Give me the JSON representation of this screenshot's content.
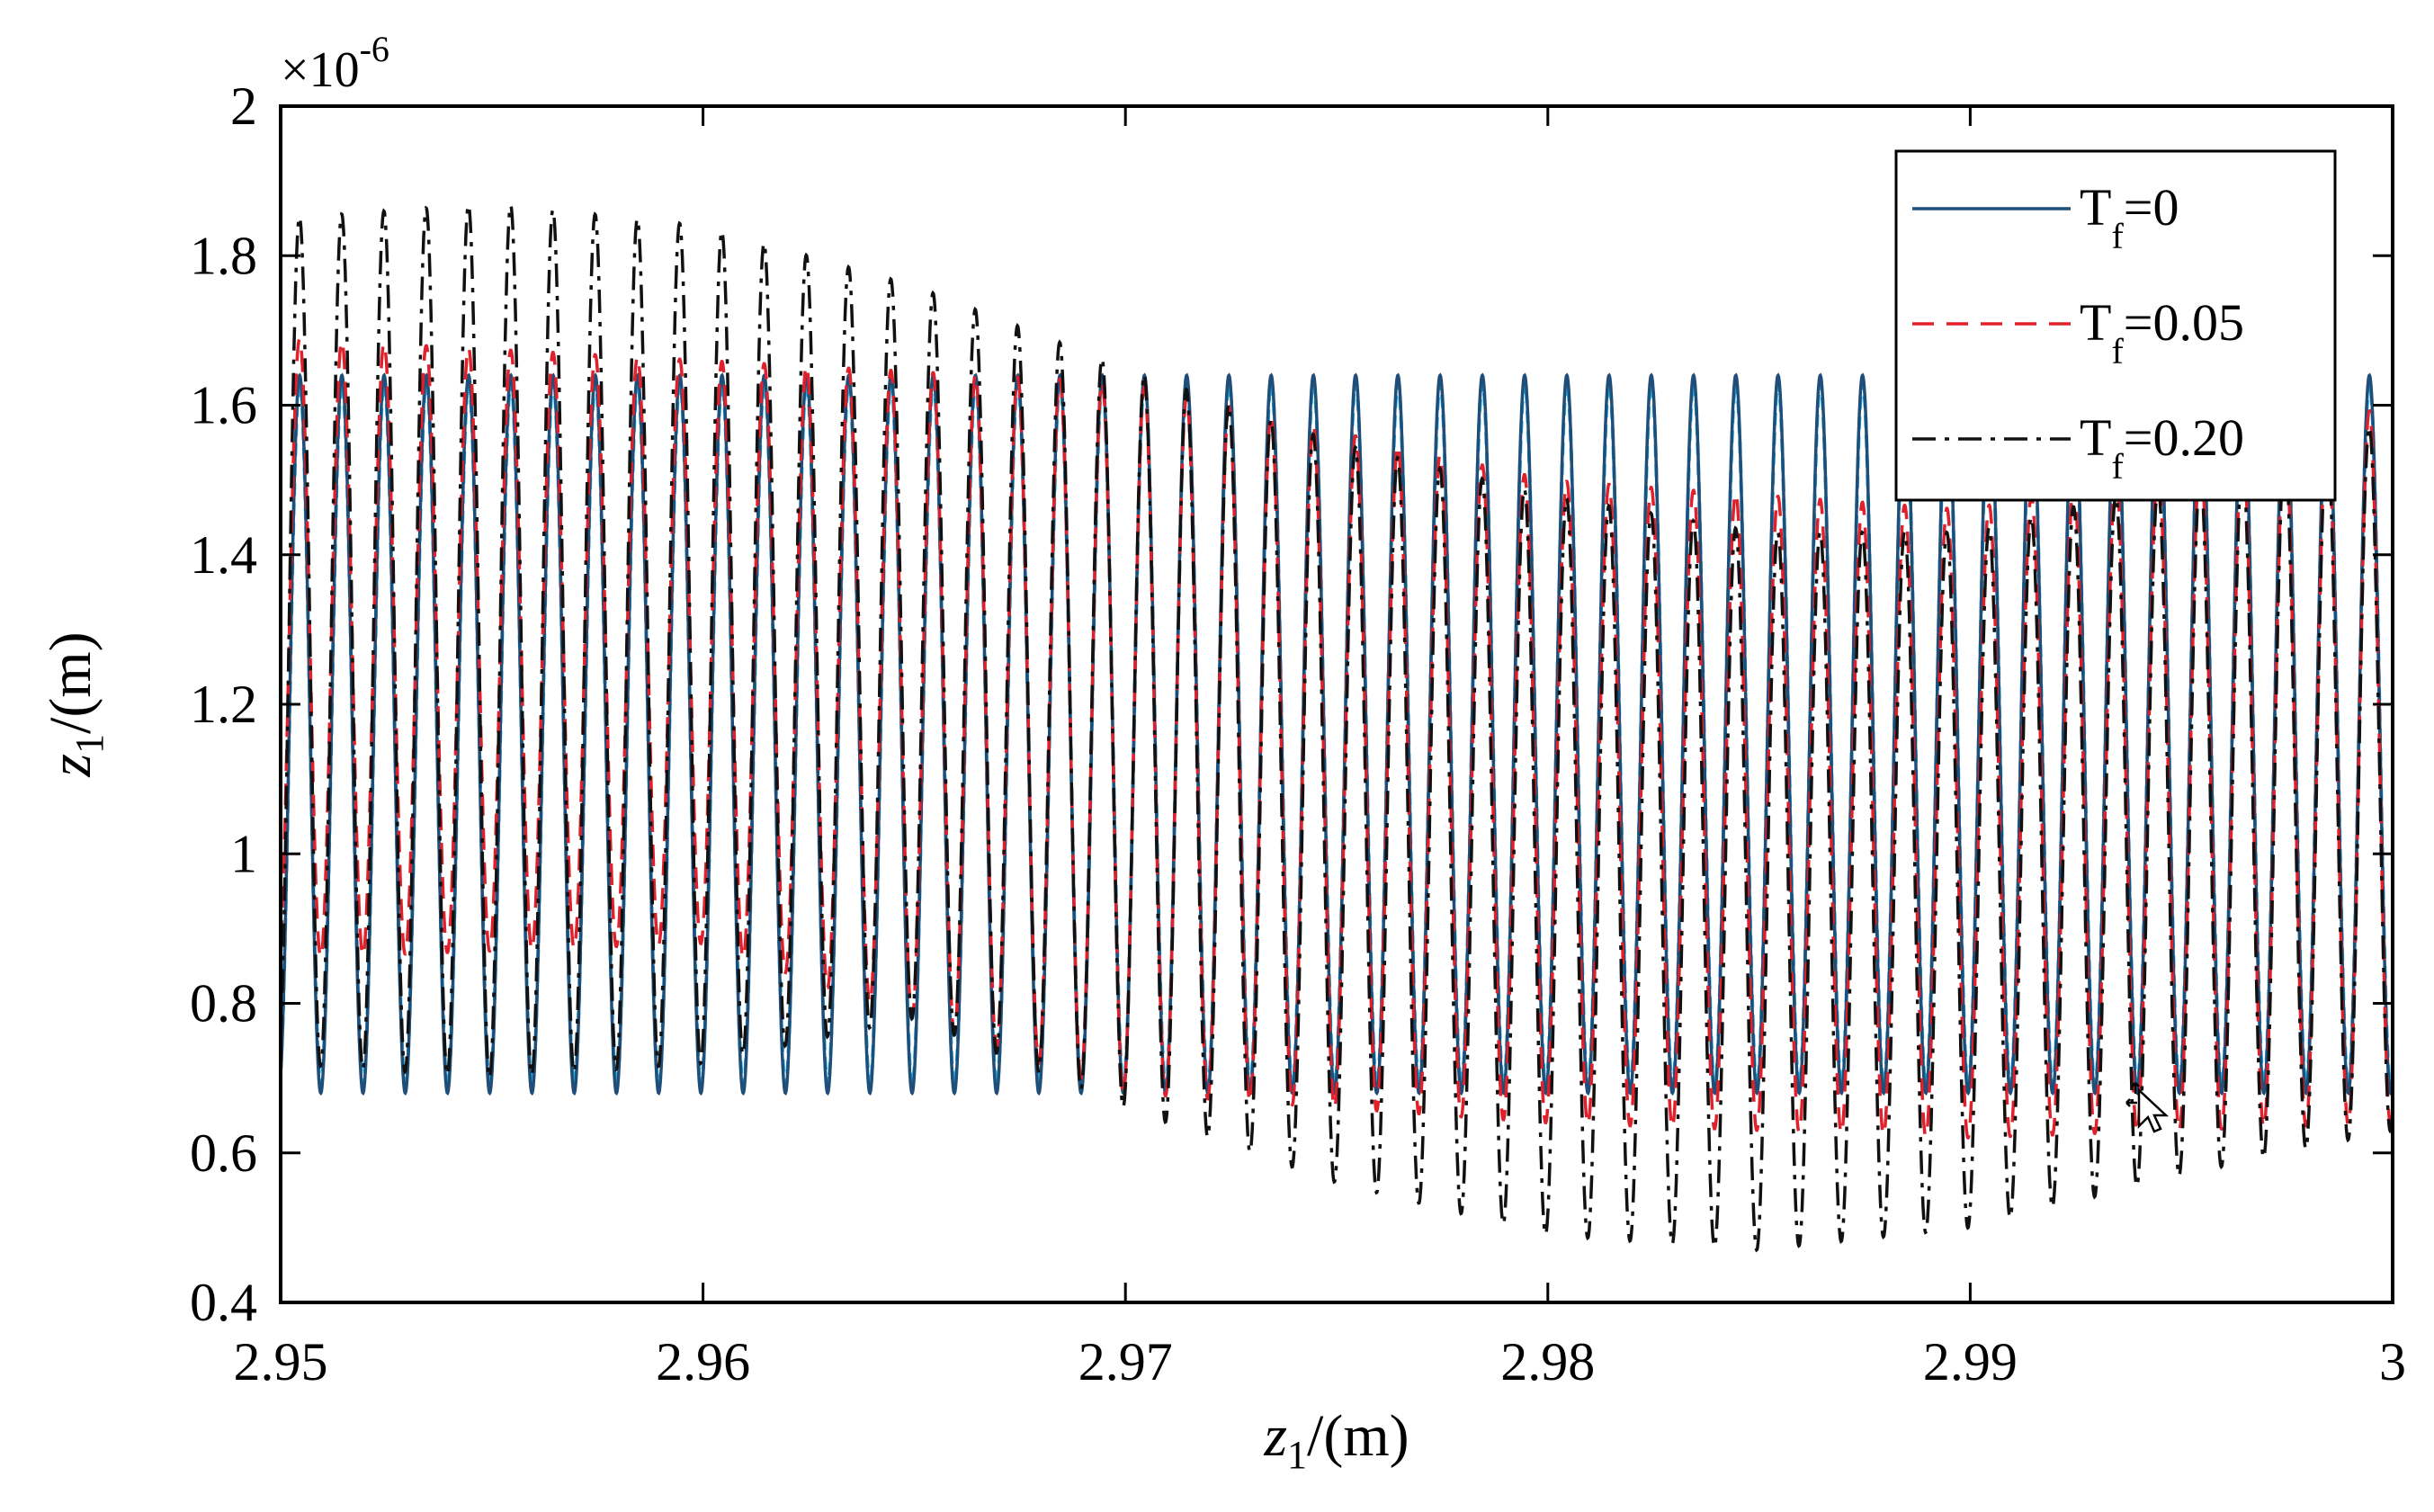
{
  "chart_data": {
    "type": "line",
    "xlabel": "z",
    "xlabel_sub": "1",
    "xlabel_unit": "/(m)",
    "ylabel": "z",
    "ylabel_sub": "1",
    "ylabel_unit": "/(m)",
    "y_scale_prefix": "×10",
    "y_scale_exponent": "-6",
    "xlim": [
      2.95,
      3.0
    ],
    "ylim": [
      0.4,
      2.0
    ],
    "x_ticks": [
      2.95,
      2.96,
      2.97,
      2.98,
      2.99,
      3.0
    ],
    "x_tick_labels": [
      "2.95",
      "2.96",
      "2.97",
      "2.98",
      "2.99",
      "3"
    ],
    "y_ticks": [
      0.4,
      0.6,
      0.8,
      1.0,
      1.2,
      1.4,
      1.6,
      1.8,
      2.0
    ],
    "y_tick_labels": [
      "0.4",
      "0.6",
      "0.8",
      "1",
      "1.2",
      "1.4",
      "1.6",
      "1.8",
      "2"
    ],
    "grid": false,
    "legend_position": "top-right",
    "oscillation_cycles": 50,
    "series": [
      {
        "name": "Tf=0",
        "label_main": "T",
        "label_sub": "f",
        "label_value": "=0",
        "color": "#1f4e79",
        "dash": "solid",
        "envelope": {
          "x": [
            2.95,
            2.97,
            3.0
          ],
          "max": [
            1.64,
            1.64,
            1.64
          ],
          "min": [
            0.68,
            0.68,
            0.68
          ]
        }
      },
      {
        "name": "Tf=0.05",
        "label_main": "T",
        "label_sub": "f",
        "label_value": "=0.05",
        "color": "#e0202a",
        "dash": "dashed",
        "envelope": {
          "x": [
            2.95,
            2.96,
            2.97,
            2.98,
            2.99,
            3.0
          ],
          "max": [
            1.69,
            1.66,
            1.63,
            1.5,
            1.46,
            1.6
          ],
          "min": [
            0.86,
            0.88,
            0.68,
            0.64,
            0.62,
            0.64
          ]
        }
      },
      {
        "name": "Tf=0.20",
        "label_main": "T",
        "label_sub": "f",
        "label_value": "=0.20",
        "color": "#111111",
        "dash": "dashdot",
        "envelope": {
          "x": [
            2.95,
            2.955,
            2.96,
            2.965,
            2.97,
            2.975,
            2.98,
            2.985,
            2.99,
            2.995,
            3.0
          ],
          "max": [
            1.85,
            1.87,
            1.84,
            1.76,
            1.65,
            1.55,
            1.48,
            1.43,
            1.43,
            1.5,
            1.58
          ],
          "min": [
            0.72,
            0.7,
            0.72,
            0.78,
            0.66,
            0.56,
            0.49,
            0.47,
            0.5,
            0.57,
            0.63
          ]
        }
      },
      {
        "name": "cyan",
        "color": "#22b5e8",
        "dash": "dotted",
        "in_legend": false,
        "envelope": {
          "x": [
            2.95,
            3.0
          ],
          "max": [
            1.63,
            1.63
          ],
          "min": [
            0.69,
            0.69
          ]
        }
      }
    ]
  }
}
